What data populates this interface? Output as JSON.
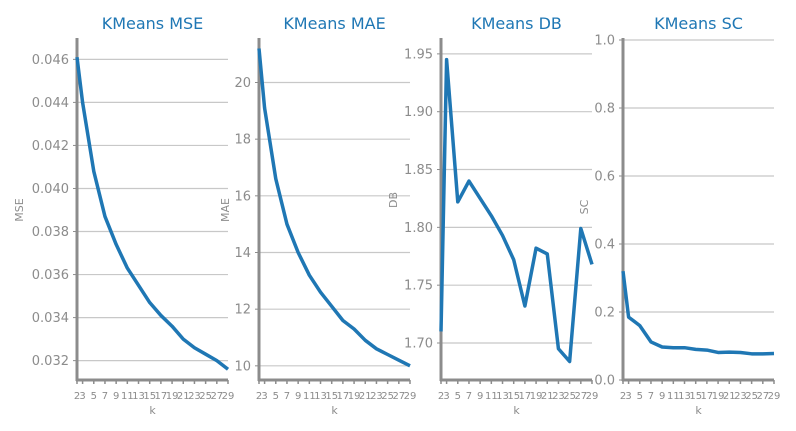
{
  "chart_data": [
    {
      "type": "line",
      "title": "KMeans MSE",
      "xlabel": "k",
      "ylabel": "MSE",
      "x": [
        2,
        3,
        5,
        7,
        9,
        11,
        13,
        15,
        17,
        19,
        21,
        23,
        25,
        27,
        29
      ],
      "x_ticks": [
        "2",
        "3",
        "5",
        "7",
        "9",
        "11",
        "13",
        "15",
        "17",
        "19",
        "21",
        "23",
        "25",
        "27",
        "29"
      ],
      "ylim": [
        0.0311,
        0.0469
      ],
      "y_ticks": [
        0.032,
        0.034,
        0.036,
        0.038,
        0.04,
        0.042,
        0.044,
        0.046
      ],
      "y_tick_labels": [
        "0.032",
        "0.034",
        "0.036",
        "0.038",
        "0.040",
        "0.042",
        "0.044",
        "0.046"
      ],
      "series": [
        {
          "values": [
            0.0461,
            0.044,
            0.0408,
            0.0387,
            0.0374,
            0.0363,
            0.0355,
            0.0347,
            0.0341,
            0.0336,
            0.033,
            0.0326,
            0.0323,
            0.032,
            0.0316
          ]
        }
      ],
      "grid": "horizontal",
      "color": "#1f77b4"
    },
    {
      "type": "line",
      "title": "KMeans MAE",
      "xlabel": "k",
      "ylabel": "MAE",
      "x": [
        2,
        3,
        5,
        7,
        9,
        11,
        13,
        15,
        17,
        19,
        21,
        23,
        25,
        27,
        29
      ],
      "x_ticks": [
        "2",
        "3",
        "5",
        "7",
        "9",
        "11",
        "13",
        "15",
        "17",
        "19",
        "21",
        "23",
        "25",
        "27",
        "29"
      ],
      "ylim": [
        9.5,
        21.5
      ],
      "y_ticks": [
        10,
        12,
        14,
        16,
        18,
        20
      ],
      "y_tick_labels": [
        "10",
        "12",
        "14",
        "16",
        "18",
        "20"
      ],
      "series": [
        {
          "values": [
            21.2,
            19.1,
            16.6,
            15.0,
            14.0,
            13.2,
            12.6,
            12.1,
            11.6,
            11.3,
            10.9,
            10.6,
            10.4,
            10.2,
            10.0
          ]
        }
      ],
      "grid": "horizontal",
      "color": "#1f77b4"
    },
    {
      "type": "line",
      "title": "KMeans DB",
      "xlabel": "k",
      "ylabel": "DB",
      "x": [
        2,
        3,
        5,
        7,
        9,
        11,
        13,
        15,
        17,
        19,
        21,
        23,
        25,
        27,
        29
      ],
      "x_ticks": [
        "2",
        "3",
        "5",
        "7",
        "9",
        "11",
        "13",
        "15",
        "17",
        "19",
        "21",
        "23",
        "25",
        "27",
        "29"
      ],
      "ylim": [
        1.668,
        1.962
      ],
      "y_ticks": [
        1.7,
        1.75,
        1.8,
        1.85,
        1.9,
        1.95
      ],
      "y_tick_labels": [
        "1.70",
        "1.75",
        "1.80",
        "1.85",
        "1.90",
        "1.95"
      ],
      "series": [
        {
          "values": [
            1.71,
            1.945,
            1.822,
            1.84,
            1.825,
            1.81,
            1.793,
            1.772,
            1.732,
            1.782,
            1.777,
            1.695,
            1.684,
            1.799,
            1.768
          ]
        }
      ],
      "grid": "horizontal",
      "color": "#1f77b4"
    },
    {
      "type": "line",
      "title": "KMeans SC",
      "xlabel": "k",
      "ylabel": "SC",
      "x": [
        2,
        3,
        5,
        7,
        9,
        11,
        13,
        15,
        17,
        19,
        21,
        23,
        25,
        27,
        29
      ],
      "x_ticks": [
        "2",
        "3",
        "5",
        "7",
        "9",
        "11",
        "13",
        "15",
        "17",
        "19",
        "21",
        "23",
        "25",
        "27",
        "29"
      ],
      "ylim": [
        0.0,
        1.0
      ],
      "y_ticks": [
        0.0,
        0.2,
        0.4,
        0.6,
        0.8,
        1.0
      ],
      "y_tick_labels": [
        "0.0",
        "0.2",
        "0.4",
        "0.6",
        "0.8",
        "1.0"
      ],
      "series": [
        {
          "values": [
            0.32,
            0.185,
            0.16,
            0.112,
            0.097,
            0.095,
            0.095,
            0.09,
            0.088,
            0.081,
            0.082,
            0.081,
            0.077,
            0.077,
            0.078
          ]
        }
      ],
      "grid": "horizontal",
      "color": "#1f77b4"
    }
  ]
}
